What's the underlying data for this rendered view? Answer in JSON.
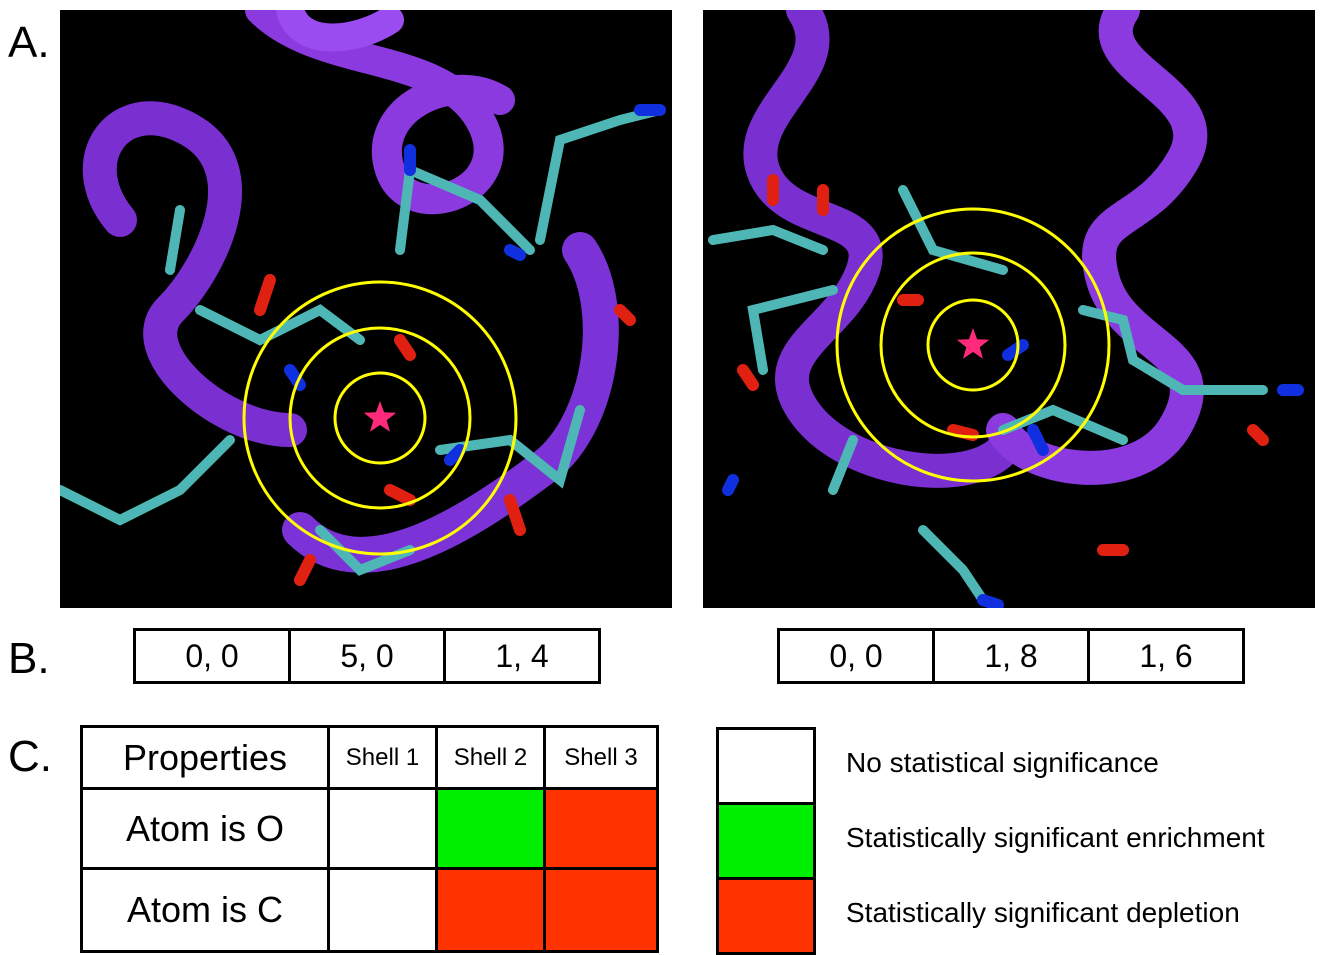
{
  "panel_labels": {
    "a": "A.",
    "b": "B.",
    "c": "C."
  },
  "shell_counts": [
    [
      "0, 0",
      "5, 0",
      "1, 4"
    ],
    [
      "0, 0",
      "1, 8",
      "1, 6"
    ]
  ],
  "table": {
    "header": [
      "Properties",
      "Shell 1",
      "Shell 2",
      "Shell 3"
    ],
    "rows": [
      {
        "label": "Atom is O",
        "cell_colors": [
          "#ffffff",
          "#00ee00",
          "#ff3300"
        ]
      },
      {
        "label": "Atom is C",
        "cell_colors": [
          "#ffffff",
          "#ff3300",
          "#ff3300"
        ]
      }
    ]
  },
  "legend": [
    {
      "color": "#ffffff",
      "label": "No statistical significance"
    },
    {
      "color": "#00ee00",
      "label": "Statistically significant enrichment"
    },
    {
      "color": "#ff3300",
      "label": "Statistically significant depletion"
    }
  ]
}
